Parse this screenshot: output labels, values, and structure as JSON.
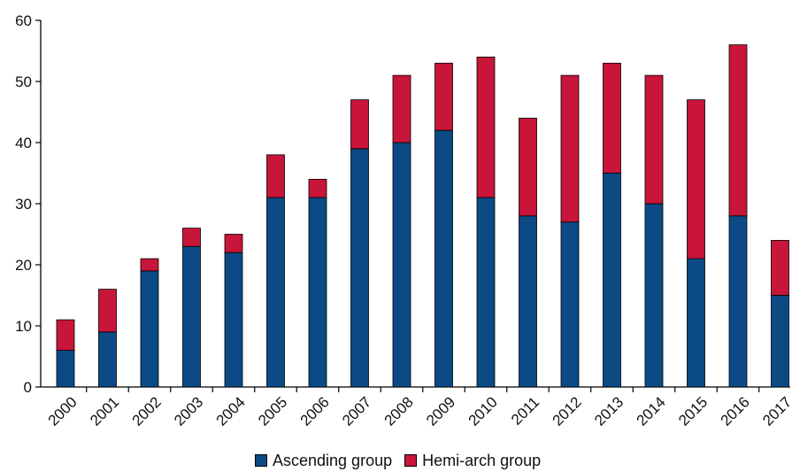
{
  "chart_data": {
    "type": "bar",
    "stacked": true,
    "categories": [
      "2000",
      "2001",
      "2002",
      "2003",
      "2004",
      "2005",
      "2006",
      "2007",
      "2008",
      "2009",
      "2010",
      "2011",
      "2012",
      "2013",
      "2014",
      "2015",
      "2016",
      "2017"
    ],
    "series": [
      {
        "name": "Ascending group",
        "color": "#0b4a84",
        "values": [
          6,
          9,
          19,
          23,
          22,
          31,
          31,
          39,
          40,
          42,
          31,
          28,
          27,
          35,
          30,
          21,
          28,
          15
        ]
      },
      {
        "name": "Hemi-arch group",
        "color": "#c8153a",
        "values": [
          5,
          7,
          2,
          3,
          3,
          7,
          3,
          8,
          11,
          11,
          23,
          16,
          24,
          18,
          21,
          26,
          28,
          9
        ]
      }
    ],
    "y_ticks": [
      "0",
      "10",
      "20",
      "30",
      "40",
      "50",
      "60"
    ],
    "ylim": [
      0,
      60
    ],
    "xlabel": "",
    "ylabel": "",
    "title": "",
    "legend_position": "bottom",
    "grid": false
  }
}
